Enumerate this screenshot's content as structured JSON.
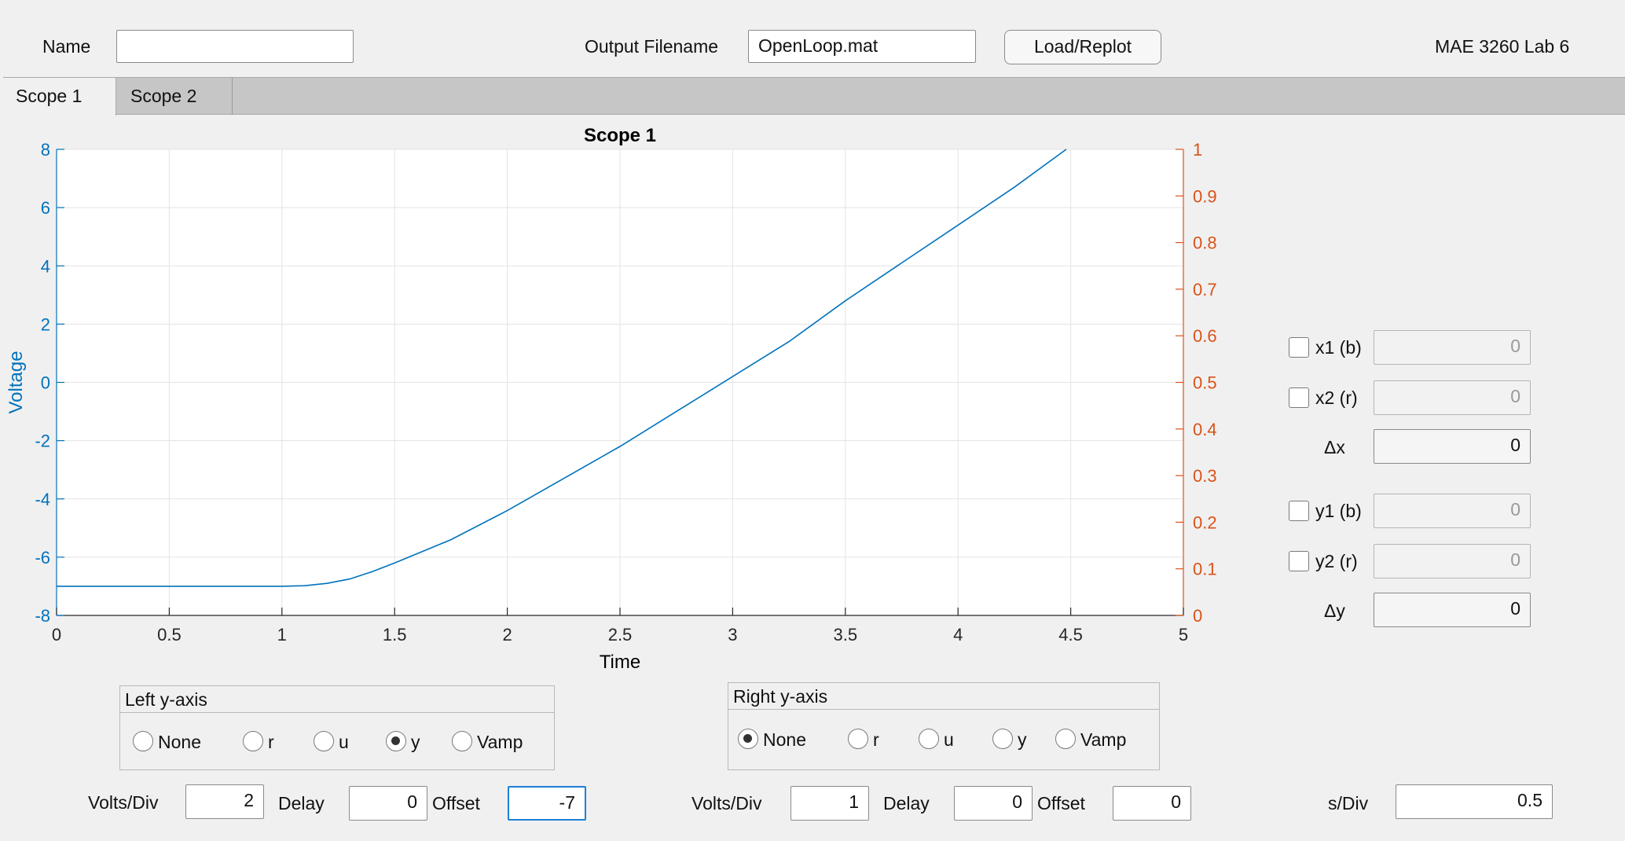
{
  "header": {
    "name_label": "Name",
    "name_value": "",
    "output_filename_label": "Output Filename",
    "output_filename_value": "OpenLoop.mat",
    "load_button": "Load/Replot",
    "lab_title": "MAE 3260 Lab 6"
  },
  "tabs": [
    {
      "label": "Scope 1",
      "active": true
    },
    {
      "label": "Scope 2",
      "active": false
    }
  ],
  "chart_data": {
    "type": "line",
    "title": "Scope 1",
    "xlabel": "Time",
    "ylabel": "Voltage",
    "xlim": [
      0,
      5
    ],
    "ylim": [
      -8,
      8
    ],
    "y2lim": [
      0,
      1
    ],
    "x_ticks": [
      "0",
      "0.5",
      "1",
      "1.5",
      "2",
      "2.5",
      "3",
      "3.5",
      "4",
      "4.5",
      "5"
    ],
    "y_ticks": [
      "-8",
      "-6",
      "-4",
      "-2",
      "0",
      "2",
      "4",
      "6",
      "8"
    ],
    "y2_ticks": [
      "0",
      "0.1",
      "0.2",
      "0.3",
      "0.4",
      "0.5",
      "0.6",
      "0.7",
      "0.8",
      "0.9",
      "1"
    ],
    "grid": true,
    "colors": {
      "left_axis": "#0072bd",
      "right_axis": "#d95319",
      "line": "#0072bd"
    },
    "series": [
      {
        "x": [
          0,
          0.5,
          1.0,
          1.1,
          1.2,
          1.3,
          1.4,
          1.5,
          1.75,
          2.0,
          2.25,
          2.5,
          2.75,
          3.0,
          3.25,
          3.5,
          3.75,
          4.0,
          4.25,
          4.48
        ],
        "values": [
          -7.0,
          -7.0,
          -7.0,
          -6.98,
          -6.9,
          -6.75,
          -6.5,
          -6.2,
          -5.4,
          -4.4,
          -3.3,
          -2.2,
          -1.0,
          0.2,
          1.4,
          2.8,
          4.1,
          5.4,
          6.7,
          8.0
        ]
      }
    ]
  },
  "cursors": {
    "x1": {
      "label": "x1 (b)",
      "value": "0"
    },
    "x2": {
      "label": "x2 (r)",
      "value": "0"
    },
    "dx": {
      "label": "Δx",
      "value": "0"
    },
    "y1": {
      "label": "y1 (b)",
      "value": "0"
    },
    "y2": {
      "label": "y2 (r)",
      "value": "0"
    },
    "dy": {
      "label": "Δy",
      "value": "0"
    }
  },
  "left_axis_panel": {
    "title": "Left y-axis",
    "options": [
      "None",
      "r",
      "u",
      "y",
      "Vamp"
    ],
    "selected": "y"
  },
  "right_axis_panel": {
    "title": "Right y-axis",
    "options": [
      "None",
      "r",
      "u",
      "y",
      "Vamp"
    ],
    "selected": "None"
  },
  "left_controls": {
    "volts_div_label": "Volts/Div",
    "volts_div_value": "2",
    "delay_label": "Delay",
    "delay_value": "0",
    "offset_label": "Offset",
    "offset_value": "-7"
  },
  "right_controls": {
    "volts_div_label": "Volts/Div",
    "volts_div_value": "1",
    "delay_label": "Delay",
    "delay_value": "0",
    "offset_label": "Offset",
    "offset_value": "0"
  },
  "time_control": {
    "s_div_label": "s/Div",
    "s_div_value": "0.5"
  }
}
